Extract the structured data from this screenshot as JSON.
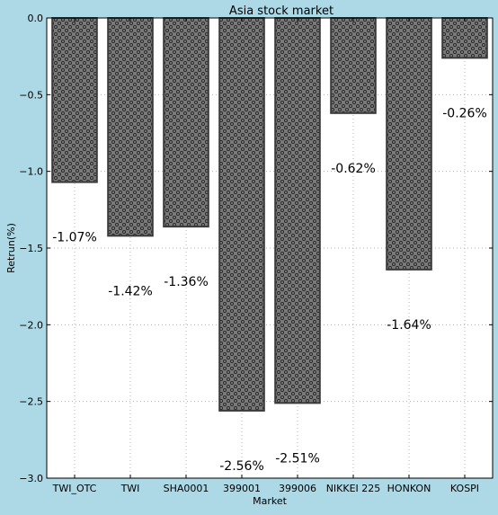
{
  "chart_data": {
    "type": "bar",
    "title": "Asia stock market",
    "xlabel": "Market",
    "ylabel": "Retrun(%)",
    "categories": [
      "TWI_OTC",
      "TWI",
      "SHA0001",
      "399001",
      "399006",
      "NIKKEI 225",
      "HONKON",
      "KOSPI"
    ],
    "values": [
      -1.07,
      -1.42,
      -1.36,
      -2.56,
      -2.51,
      -0.62,
      -1.64,
      -0.26
    ],
    "value_labels": [
      "-1.07%",
      "-1.42%",
      "-1.36%",
      "-2.56%",
      "-2.51%",
      "-0.62%",
      "-1.64%",
      "-0.26%"
    ],
    "ylim": [
      -3.0,
      0.0
    ],
    "yticks": [
      0.0,
      -0.5,
      -1.0,
      -1.5,
      -2.0,
      -2.5,
      -3.0
    ],
    "ytick_labels": [
      "0.0",
      "−0.5",
      "−1.0",
      "−1.5",
      "−2.0",
      "−2.5",
      "−3.0"
    ],
    "grid": true,
    "bar_pattern": "dots",
    "colors": {
      "background": "#add8e6",
      "plot_background": "#ffffff",
      "bar_fill": "#7a7a7a",
      "bar_edge": "#3a3a3a",
      "dot": "#2a2a2a",
      "grid": "#b0b0b0"
    }
  }
}
